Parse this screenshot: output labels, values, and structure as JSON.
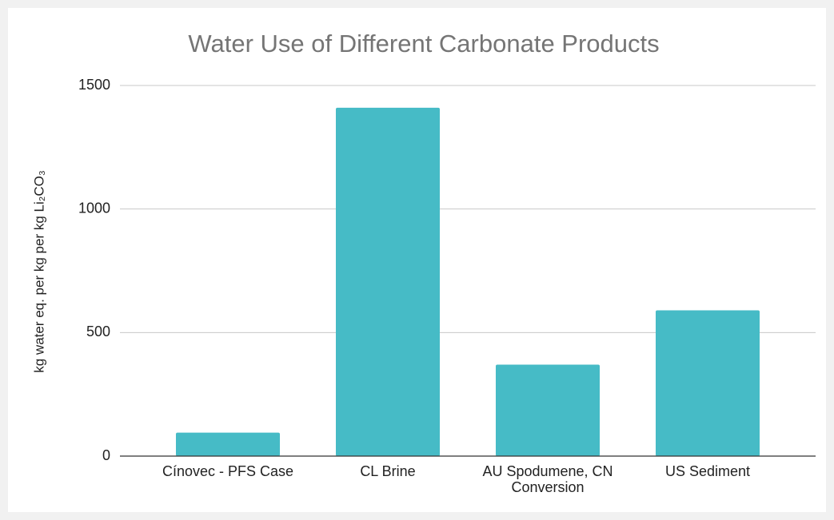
{
  "chart_data": {
    "type": "bar",
    "title": "Water Use of Different Carbonate Products",
    "ylabel": "kg water eq. per kg per kg Li₂CO₃",
    "categories": [
      "Cínovec - PFS Case",
      "CL Brine",
      "AU Spodumene, CN Conversion",
      "US Sediment"
    ],
    "values": [
      95,
      1410,
      370,
      590
    ],
    "color": "#46bbc6",
    "ylim": [
      0,
      1500
    ],
    "yticks": [
      0,
      500,
      1000,
      1500
    ],
    "grid": true
  }
}
